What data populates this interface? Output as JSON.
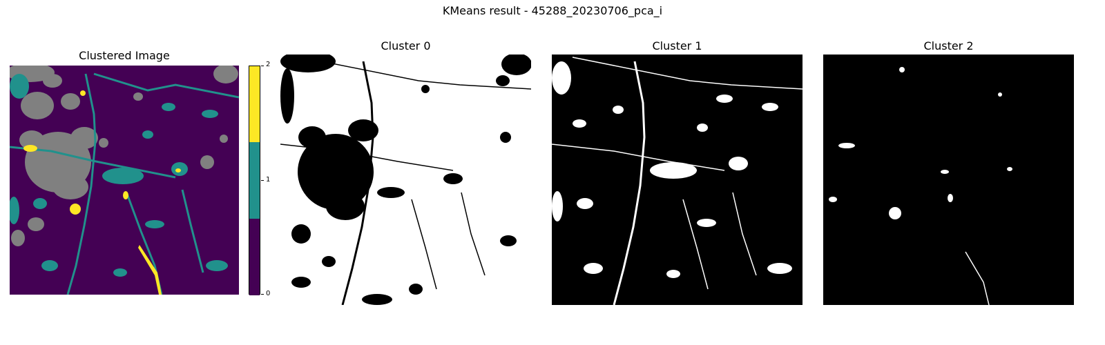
{
  "figure": {
    "title": "KMeans result - 45288_20230706_pca_i"
  },
  "panels": [
    {
      "title": "Clustered Image"
    },
    {
      "title": "Cluster 0"
    },
    {
      "title": "Cluster 1"
    },
    {
      "title": "Cluster 2"
    }
  ],
  "colorbar": {
    "ticks": [
      "0",
      "1",
      "2"
    ],
    "colors": {
      "cluster_0": "#440154",
      "cluster_1": "#21918c",
      "cluster_2": "#fde725"
    }
  },
  "colors": {
    "masked": "#808080",
    "mask_on": "#ffffff",
    "mask_off": "#000000"
  }
}
